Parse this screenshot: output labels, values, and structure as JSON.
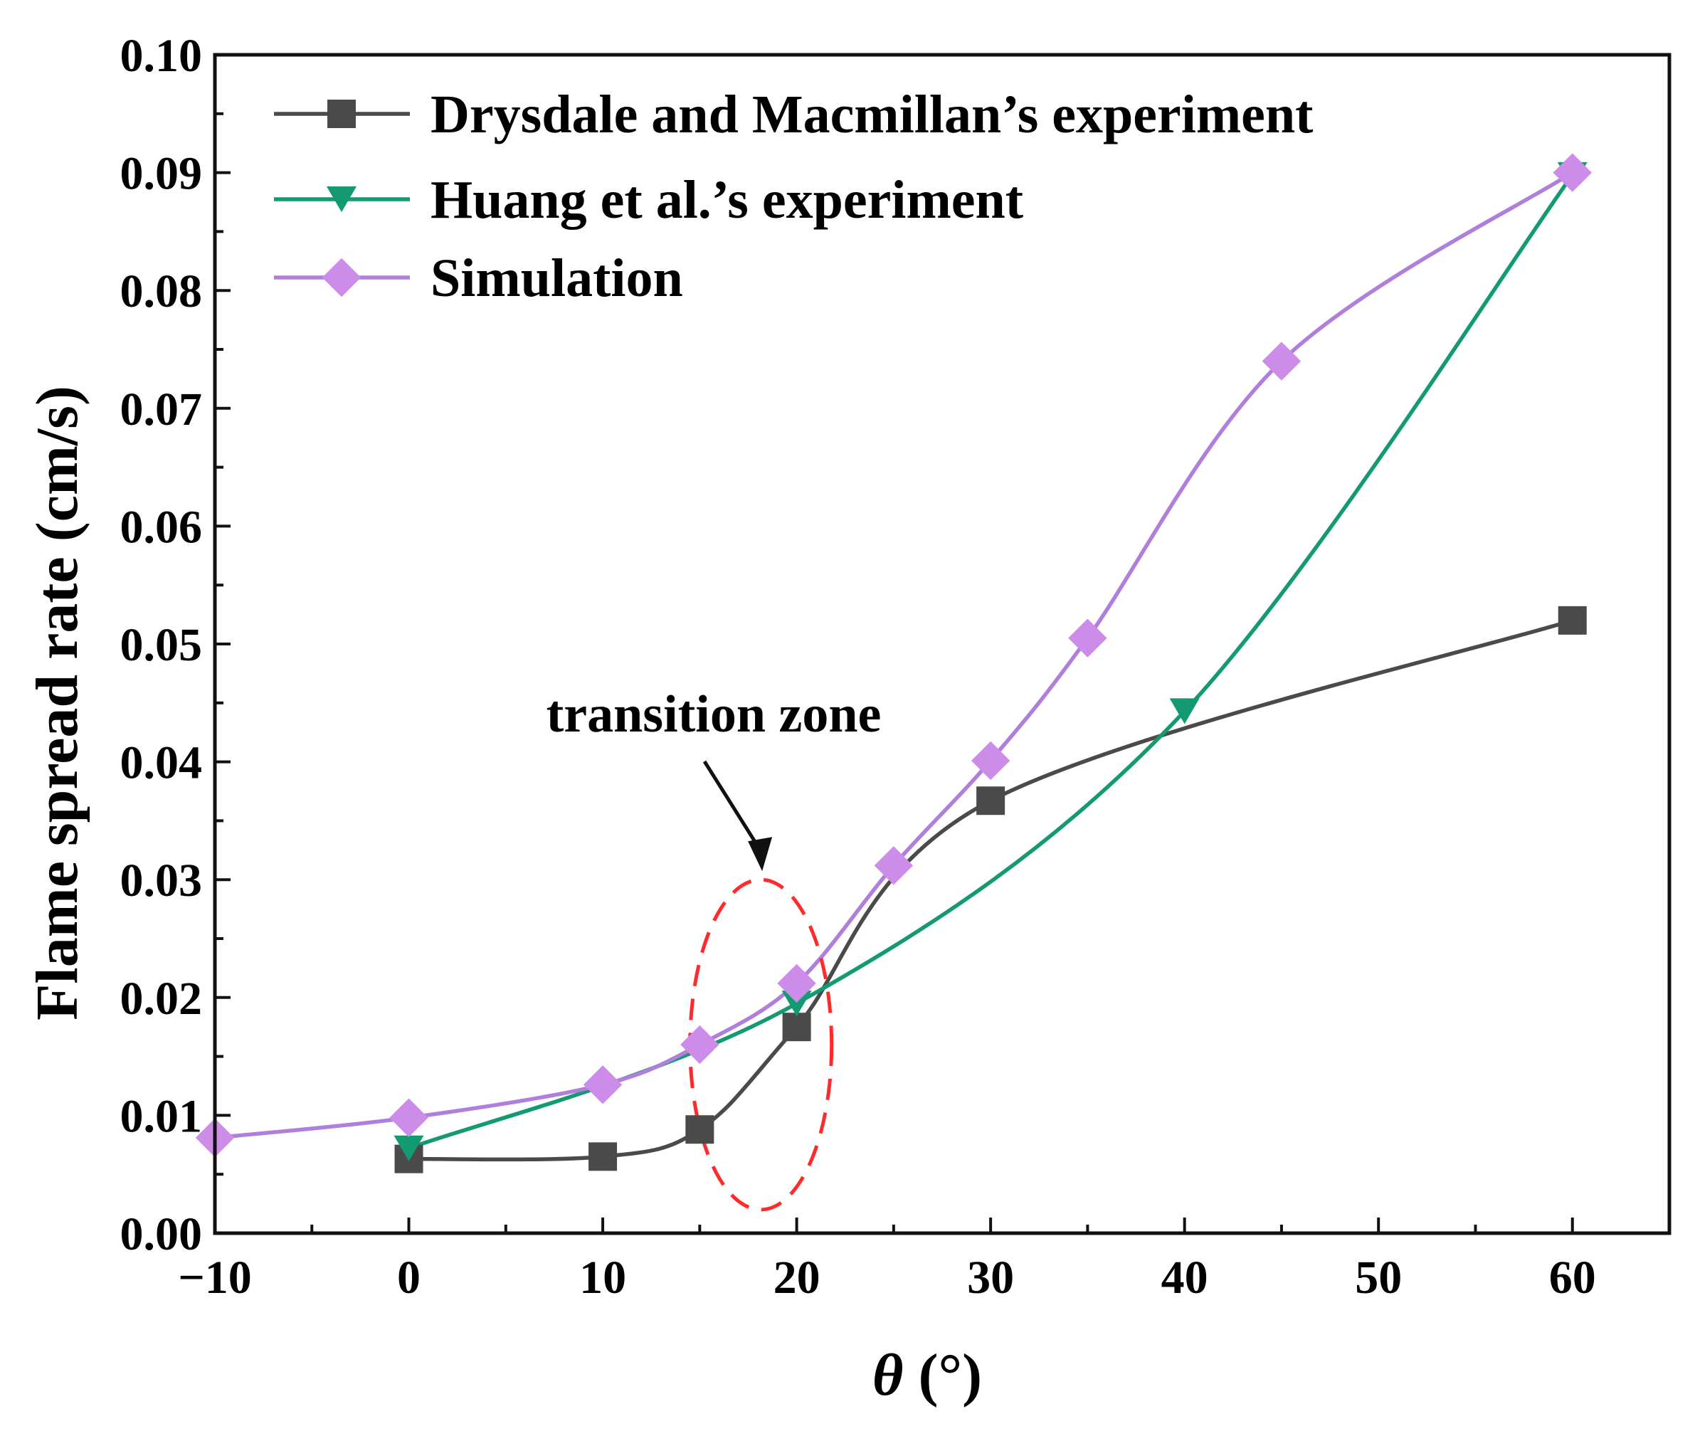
{
  "chart_data": {
    "type": "line",
    "xlabel_symbol": "θ",
    "xlabel_unit": " (°)",
    "ylabel": "Flame spread rate (cm/s)",
    "xlim": [
      -10,
      65
    ],
    "ylim": [
      0,
      0.1
    ],
    "x_ticks": [
      "−10",
      "0",
      "10",
      "20",
      "30",
      "40",
      "50",
      "60"
    ],
    "y_ticks": [
      "0.00",
      "0.01",
      "0.02",
      "0.03",
      "0.04",
      "0.05",
      "0.06",
      "0.07",
      "0.08",
      "0.09",
      "0.10"
    ],
    "legend_position": "top-left",
    "grid": false,
    "series": [
      {
        "name": "Drysdale and Macmillan’s experiment",
        "marker": "square",
        "color": "#4a4a4a",
        "marker_color": "#4a4a4a",
        "x": [
          0,
          10,
          15,
          20,
          30,
          60
        ],
        "y": [
          0.0063,
          0.0065,
          0.0088,
          0.0175,
          0.0367,
          0.052
        ]
      },
      {
        "name": "Huang et al.’s experiment",
        "marker": "triangle-down",
        "color": "#139a72",
        "marker_color": "#139a72",
        "x": [
          0,
          20,
          40,
          60
        ],
        "y": [
          0.0072,
          0.0195,
          0.0443,
          0.0898
        ]
      },
      {
        "name": "Simulation",
        "marker": "diamond",
        "color": "#b07fdc",
        "marker_color": "#cc8ce8",
        "x": [
          -10,
          0,
          10,
          15,
          20,
          25,
          30,
          35,
          45,
          60
        ],
        "y": [
          0.0081,
          0.0098,
          0.0126,
          0.016,
          0.0212,
          0.0312,
          0.0401,
          0.0505,
          0.074,
          0.09
        ]
      }
    ],
    "annotations": [
      {
        "text": "transition zone",
        "target_x": 18,
        "target_y": 0.03
      }
    ],
    "highlight": {
      "shape": "ellipse",
      "color": "#ff2b2b",
      "x_range": [
        14.5,
        21.8
      ],
      "y_range": [
        0.002,
        0.03
      ]
    }
  }
}
